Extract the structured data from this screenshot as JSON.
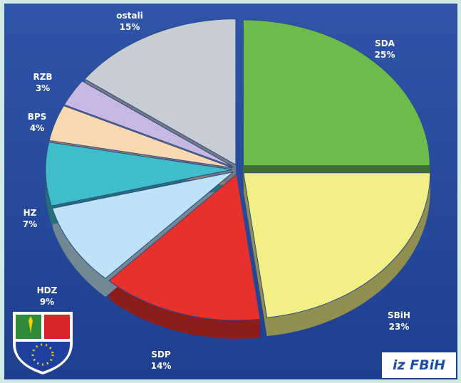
{
  "chart_data": {
    "type": "pie",
    "categories": [
      "SDA",
      "SBiH",
      "SDP",
      "HDZ",
      "HZ",
      "BPS",
      "RZB",
      "ostali"
    ],
    "values": [
      25,
      23,
      14,
      9,
      7,
      4,
      3,
      15
    ],
    "value_labels": [
      "25%",
      "23%",
      "14%",
      "9%",
      "7%",
      "4%",
      "3%",
      "15%"
    ],
    "colors": [
      "#6dbb4a",
      "#f2ef86",
      "#e8312d",
      "#bfe3f6",
      "#3fbdc9",
      "#fbd9b0",
      "#c6b8e2",
      "#c7cdd2"
    ],
    "badge": "iz FBiH"
  }
}
